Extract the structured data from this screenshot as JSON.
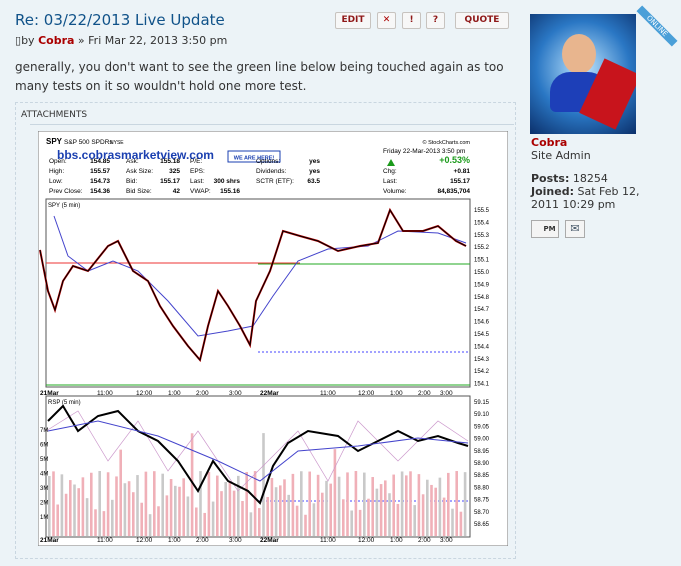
{
  "post": {
    "title": "Re: 03/22/2013 Live Update",
    "buttons": [
      "EDIT",
      "!",
      "?",
      "QUOTE"
    ],
    "byline_prefix": "by",
    "author": "Cobra",
    "date": "» Fri Mar 22, 2013 3:50 pm",
    "body_lines": [
      "generally, you don't want to see the green line below being touched again as too",
      "many tests on it so wouldn't hold one more test."
    ],
    "attachments_label": "ATTACHMENTS"
  },
  "chart_image": {
    "symbol": "SPY",
    "name": "S&P 500 SPDRs",
    "exchange": "NYSE",
    "credit": "© StockCharts.com",
    "date": "Friday 22-Mar-2013 3:50 pm",
    "change_pct": "+0.53%",
    "watermark": "bbs.cobrasmarketview.com",
    "badge": "WE ARE HERE!",
    "quote_columns": [
      [
        {
          "label": "Open:",
          "value": "154.85"
        },
        {
          "label": "High:",
          "value": "155.57"
        },
        {
          "label": "Low:",
          "value": "154.73"
        },
        {
          "label": "Prev Close:",
          "value": "154.36"
        }
      ],
      [
        {
          "label": "Ask:",
          "value": "155.18"
        },
        {
          "label": "Ask Size:",
          "value": "325"
        },
        {
          "label": "Bid:",
          "value": "155.17"
        },
        {
          "label": "Bid Size:",
          "value": "42"
        }
      ],
      [
        {
          "label": "P/E:"
        },
        {
          "label": "EPS:"
        },
        {
          "label": "Last:",
          "value": "300 shrs"
        },
        {
          "label": "VWAP:",
          "value": "155.16"
        }
      ],
      [
        {
          "label": "Options:",
          "value": "yes"
        },
        {
          "label": "Dividends:",
          "value": "yes"
        },
        {
          "label": "SCTR (ETF):",
          "value": "63.5"
        }
      ],
      [
        {
          "label": "Chg:",
          "value": "+0.81"
        },
        {
          "label": "Last:",
          "value": "155.17"
        },
        {
          "label": "Volume:",
          "value": "84,835,704"
        }
      ]
    ],
    "price_panel": "SPY (5 min)",
    "price_ticks": [
      "155.5",
      "155.4",
      "155.3",
      "155.2",
      "155.1",
      "155.0",
      "154.9",
      "154.8",
      "154.7",
      "154.6",
      "154.5",
      "154.4",
      "154.3",
      "154.2",
      "154.1"
    ],
    "lower_panel": "RSP (5 min)",
    "lower_ticks": [
      "59.15",
      "59.10",
      "59.05",
      "59.00",
      "58.95",
      "58.90",
      "58.85",
      "58.80",
      "58.75",
      "58.70",
      "58.65"
    ],
    "volume_ticks": [
      "7M",
      "6M",
      "5M",
      "4M",
      "3M",
      "2M",
      "1M"
    ],
    "time_labels": [
      "21Mar",
      "11:00",
      "12:00",
      "1:00",
      "2:00",
      "3:00",
      "22Mar",
      "11:00",
      "12:00",
      "1:00",
      "2:00",
      "3:00"
    ]
  },
  "profile": {
    "status": "ONLINE",
    "username": "Cobra",
    "rank": "Site Admin",
    "posts_label": "Posts:",
    "posts": "18254",
    "joined_label": "Joined:",
    "joined_lines": [
      "Sat Feb 12,",
      "2011 10:29 pm"
    ],
    "pm": "PM"
  }
}
